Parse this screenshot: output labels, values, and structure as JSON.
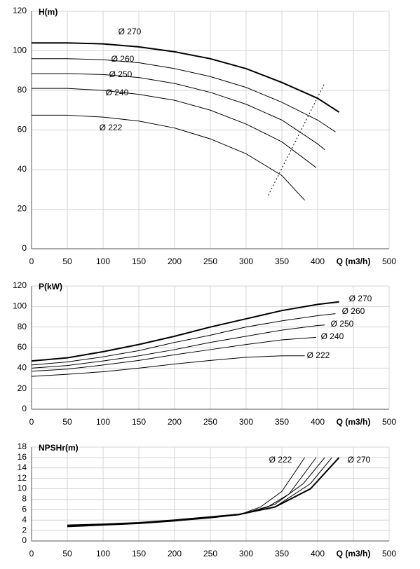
{
  "chart_data": [
    {
      "type": "line",
      "y_label": "H(m)",
      "xlim": [
        0,
        500
      ],
      "ylim": [
        0,
        120
      ],
      "xticks": [
        0,
        50,
        100,
        150,
        200,
        250,
        300,
        350,
        400,
        {
          "value": 450,
          "label": "Q (m3/h)"
        },
        500
      ],
      "yticks": [
        0,
        20,
        40,
        60,
        80,
        100,
        120
      ],
      "grid": true,
      "series": [
        {
          "name": "Ø 270",
          "color": "#000000",
          "line_width": 2,
          "x": [
            0,
            50,
            100,
            150,
            200,
            250,
            300,
            350,
            400,
            430
          ],
          "values": [
            104,
            104,
            103.5,
            102,
            99.5,
            96,
            91,
            84,
            76,
            69
          ]
        },
        {
          "name": "Ø 260",
          "color": "#000000",
          "line_width": 1,
          "x": [
            0,
            50,
            100,
            150,
            200,
            250,
            300,
            350,
            400,
            425
          ],
          "values": [
            96,
            96,
            95.5,
            94,
            91,
            87,
            81.5,
            74,
            65,
            59
          ]
        },
        {
          "name": "Ø 250",
          "color": "#000000",
          "line_width": 1,
          "x": [
            0,
            50,
            100,
            150,
            200,
            250,
            300,
            350,
            400,
            410
          ],
          "values": [
            88.5,
            88.5,
            88,
            86.5,
            83.5,
            79,
            73,
            65,
            53,
            50
          ]
        },
        {
          "name": "Ø 240",
          "color": "#000000",
          "line_width": 1,
          "x": [
            0,
            50,
            100,
            150,
            200,
            250,
            300,
            350,
            398
          ],
          "values": [
            81,
            81,
            80,
            78,
            75,
            70,
            63,
            54,
            41
          ]
        },
        {
          "name": "Ø 222",
          "color": "#000000",
          "line_width": 1,
          "x": [
            0,
            50,
            100,
            150,
            200,
            250,
            300,
            350,
            382
          ],
          "values": [
            67.5,
            67.5,
            66.5,
            64.5,
            61,
            55.5,
            48,
            37,
            24.5
          ]
        },
        {
          "color": "#000000",
          "line_width": 1,
          "dash": true,
          "x": [
            331,
            409
          ],
          "values": [
            27,
            83
          ]
        }
      ]
    },
    {
      "type": "line",
      "y_label": "P(kW)",
      "xlim": [
        0,
        500
      ],
      "ylim": [
        0,
        120
      ],
      "xticks": [
        0,
        50,
        100,
        150,
        200,
        250,
        300,
        350,
        400,
        {
          "value": 450,
          "label": "Q (m3/h)"
        },
        500
      ],
      "yticks": [
        0,
        20,
        40,
        60,
        80,
        100,
        120
      ],
      "grid": true,
      "series": [
        {
          "name": "Ø 270",
          "color": "#000000",
          "line_width": 2,
          "x": [
            0,
            50,
            100,
            150,
            200,
            250,
            300,
            350,
            400,
            430
          ],
          "values": [
            47,
            50,
            56,
            63,
            71,
            80,
            88,
            96,
            102,
            104.5
          ]
        },
        {
          "name": "Ø 260",
          "color": "#000000",
          "line_width": 1,
          "x": [
            0,
            50,
            100,
            150,
            200,
            250,
            300,
            350,
            400,
            425
          ],
          "values": [
            43,
            46,
            51,
            57,
            65,
            72,
            80,
            86,
            91,
            93
          ]
        },
        {
          "name": "Ø 250",
          "color": "#000000",
          "line_width": 1,
          "x": [
            0,
            50,
            100,
            150,
            200,
            250,
            300,
            350,
            400,
            410
          ],
          "values": [
            40,
            42.5,
            47,
            52,
            58,
            65,
            71,
            77,
            81.5,
            82
          ]
        },
        {
          "name": "Ø 240",
          "color": "#000000",
          "line_width": 1,
          "x": [
            0,
            50,
            100,
            150,
            200,
            250,
            300,
            350,
            398
          ],
          "values": [
            37,
            39,
            43,
            47.5,
            53,
            58,
            63,
            67.5,
            70
          ]
        },
        {
          "name": "Ø 222",
          "color": "#000000",
          "line_width": 1,
          "x": [
            0,
            50,
            100,
            150,
            200,
            250,
            300,
            350,
            382
          ],
          "values": [
            32,
            34,
            36.5,
            40,
            44,
            47.5,
            50.5,
            52,
            52
          ]
        }
      ]
    },
    {
      "type": "line",
      "y_label": "NPSHr(m)",
      "xlim": [
        0,
        500
      ],
      "ylim": [
        0,
        18
      ],
      "xticks": [
        0,
        50,
        100,
        150,
        200,
        250,
        300,
        350,
        400,
        {
          "value": 450,
          "label": "Q (m3/h)"
        },
        500
      ],
      "yticks": [
        0,
        2,
        4,
        6,
        8,
        10,
        12,
        14,
        16,
        18
      ],
      "grid": true,
      "series": [
        {
          "name": "Ø 222",
          "color": "#000000",
          "line_width": 1,
          "x": [
            50,
            100,
            150,
            200,
            250,
            290,
            320,
            350,
            382
          ],
          "values": [
            2.7,
            3,
            3.3,
            3.8,
            4.4,
            5,
            6.5,
            9.5,
            16
          ]
        },
        {
          "color": "#000000",
          "line_width": 1,
          "x": [
            50,
            100,
            150,
            200,
            250,
            290,
            330,
            360,
            398
          ],
          "values": [
            2.8,
            3.05,
            3.4,
            3.9,
            4.5,
            5,
            6.5,
            9,
            16
          ]
        },
        {
          "color": "#000000",
          "line_width": 1,
          "x": [
            50,
            100,
            150,
            200,
            250,
            290,
            340,
            380,
            410
          ],
          "values": [
            2.85,
            3.1,
            3.45,
            3.95,
            4.55,
            5,
            7,
            11,
            16
          ]
        },
        {
          "color": "#000000",
          "line_width": 1,
          "x": [
            50,
            100,
            150,
            200,
            250,
            290,
            340,
            390,
            420
          ],
          "values": [
            2.9,
            3.15,
            3.5,
            4,
            4.6,
            5,
            6.5,
            11,
            16
          ]
        },
        {
          "name": "Ø 270",
          "color": "#000000",
          "line_width": 2,
          "x": [
            50,
            100,
            150,
            200,
            250,
            290,
            340,
            390,
            430
          ],
          "values": [
            3,
            3.2,
            3.5,
            4,
            4.6,
            5.1,
            6.5,
            10,
            16
          ]
        }
      ]
    }
  ]
}
